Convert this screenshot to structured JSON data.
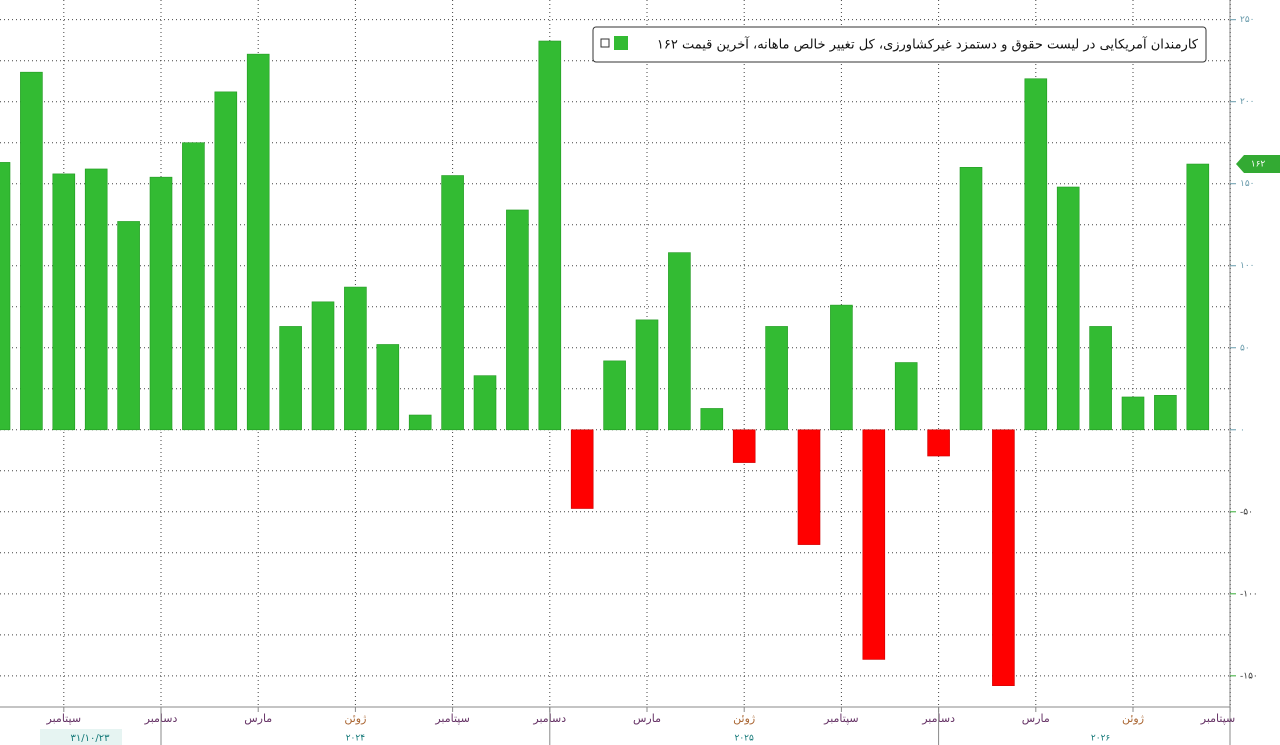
{
  "chart_data": {
    "type": "bar",
    "legend": "کارمندان آمریکایی در لیست حقوق و دستمزد غیرکشاورزی، کل تغییر خالص ماهانه، آخرین قیمت ۱۶۲",
    "categories": [
      null,
      null,
      "سپتامبر",
      null,
      null,
      "دسامبر",
      null,
      null,
      "مارس",
      null,
      null,
      "ژوئن",
      null,
      null,
      "سپتامبر",
      null,
      null,
      "دسامبر",
      null,
      null,
      "مارس",
      null,
      null,
      "ژوئن",
      null,
      null,
      "سپتامبر",
      null,
      null,
      "دسامبر",
      null,
      null,
      "مارس",
      null,
      null,
      "ژوئن",
      null,
      null,
      "سپتامبر"
    ],
    "values": [
      163,
      218,
      156,
      159,
      127,
      154,
      175,
      206,
      229,
      63,
      78,
      87,
      52,
      9,
      155,
      33,
      134,
      237,
      -48,
      42,
      67,
      108,
      13,
      -20,
      63,
      -70,
      76,
      -140,
      41,
      -16,
      160,
      -156,
      214,
      148,
      63,
      20,
      21,
      162,
      null
    ],
    "colors": {
      "positive": "#33bb33",
      "negative": "#ff0000"
    },
    "years": [
      "۲۰۲۴",
      "۲۰۲۵",
      "۲۰۲۶"
    ],
    "date_label": "۳۱/۱۰/۲۳",
    "last_label": "۱۶۲",
    "ylim": [
      -169,
      262
    ],
    "yticks": [
      {
        "value": -150,
        "label": "-۱۵۰"
      },
      {
        "value": -100,
        "label": "-۱۰۰"
      },
      {
        "value": -50,
        "label": "-۵۰"
      },
      {
        "value": 0,
        "label": "۰"
      },
      {
        "value": 50,
        "label": "۵۰"
      },
      {
        "value": 100,
        "label": "۱۰۰"
      },
      {
        "value": 150,
        "label": "۱۵۰"
      },
      {
        "value": 200,
        "label": "۲۰۰"
      },
      {
        "value": 250,
        "label": "۲۵۰"
      }
    ],
    "grid": true
  }
}
